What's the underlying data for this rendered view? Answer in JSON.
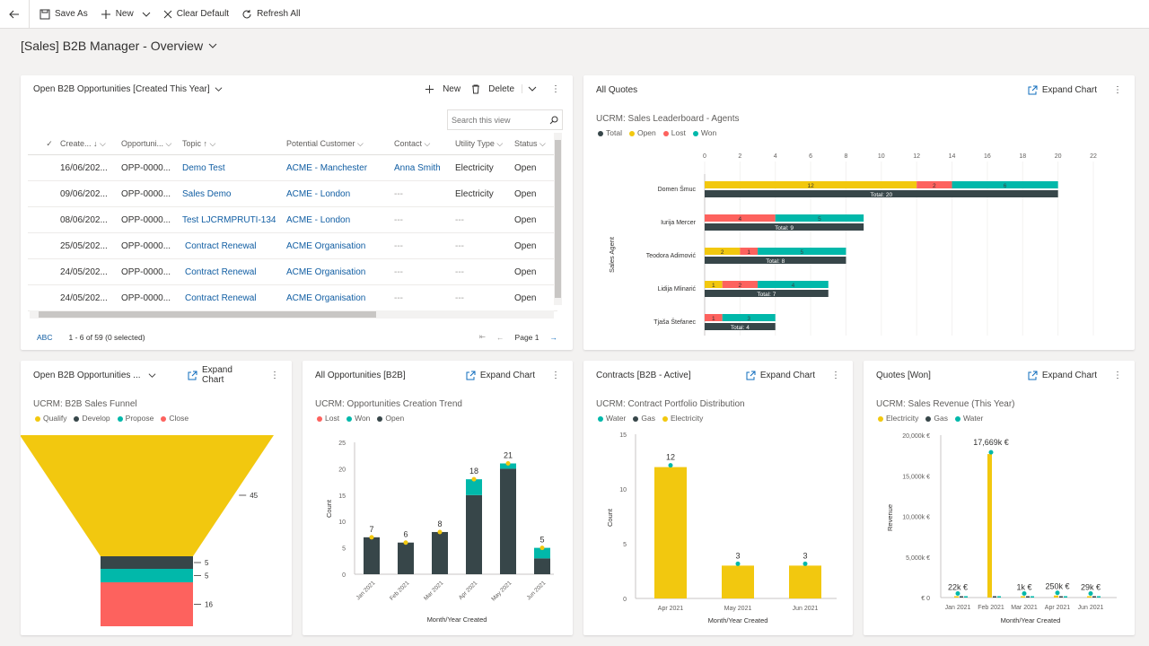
{
  "toolbar": {
    "save_as": "Save As",
    "new": "New",
    "clear_default": "Clear Default",
    "refresh_all": "Refresh All"
  },
  "page": {
    "title": "[Sales] B2B Manager - Overview"
  },
  "grid": {
    "title": "Open B2B Opportunities [Created This Year]",
    "new_label": "New",
    "delete_label": "Delete",
    "search_placeholder": "Search this view",
    "columns": [
      "Create...",
      "Opportuni...",
      "Topic",
      "Potential Customer",
      "Contact",
      "Utility Type",
      "Status"
    ],
    "rows": [
      {
        "created": "16/06/202...",
        "opp": "OPP-0000...",
        "topic": "Demo Test",
        "customer": "ACME - Manchester",
        "contact": "Anna Smith",
        "utility": "Electricity",
        "status": "Open"
      },
      {
        "created": "09/06/202...",
        "opp": "OPP-0000...",
        "topic": "Sales Demo",
        "customer": "ACME - London",
        "contact": "---",
        "utility": "Electricity",
        "status": "Open"
      },
      {
        "created": "08/06/202...",
        "opp": "OPP-0000...",
        "topic": "Test LJCRMPRUTI-134",
        "customer": "ACME - London",
        "contact": "---",
        "utility": "---",
        "status": "Open"
      },
      {
        "created": "25/05/202...",
        "opp": "OPP-0000...",
        "topic": "Contract Renewal",
        "customer": "ACME Organisation",
        "contact": "---",
        "utility": "---",
        "status": "Open"
      },
      {
        "created": "24/05/202...",
        "opp": "OPP-0000...",
        "topic": "Contract Renewal",
        "customer": "ACME Organisation",
        "contact": "---",
        "utility": "---",
        "status": "Open"
      },
      {
        "created": "24/05/202...",
        "opp": "OPP-0000...",
        "topic": "Contract Renewal",
        "customer": "ACME Organisation",
        "contact": "---",
        "utility": "---",
        "status": "Open"
      }
    ],
    "footer_abc": "ABC",
    "footer_count": "1 - 6 of 59 (0 selected)",
    "footer_page": "Page 1"
  },
  "quotes": {
    "title": "All Quotes",
    "expand": "Expand Chart"
  },
  "funnel_card": {
    "title": "Open B2B Opportunities ...",
    "expand": "Expand Chart"
  },
  "trend_card": {
    "title": "All Opportunities [B2B]",
    "expand": "Expand Chart"
  },
  "contracts_card": {
    "title": "Contracts [B2B - Active]",
    "expand": "Expand Chart"
  },
  "won_card": {
    "title": "Quotes [Won]",
    "expand": "Expand Chart"
  },
  "colors": {
    "total": "#374649",
    "open": "#f2c80f",
    "lost": "#fd625e",
    "won": "#01b8aa",
    "accent": "#0f6cbd"
  },
  "chart_data": [
    {
      "type": "bar",
      "title": "UCRM: Sales Leaderboard - Agents",
      "ylabel": "Sales Agent",
      "legend": [
        "Total",
        "Open",
        "Lost",
        "Won"
      ],
      "x_ticks": [
        0,
        2,
        4,
        6,
        8,
        10,
        12,
        14,
        16,
        18,
        20,
        22
      ],
      "categories": [
        "Domen Šmuc",
        "Iurija Mercer",
        "Teodora Adimović",
        "Lidija Mlinarić",
        "Tjaša Štefanec"
      ],
      "series": [
        {
          "name": "Open",
          "values": [
            12,
            0,
            2,
            1,
            0
          ]
        },
        {
          "name": "Lost",
          "values": [
            2,
            4,
            1,
            2,
            1
          ]
        },
        {
          "name": "Won",
          "values": [
            6,
            5,
            5,
            4,
            3
          ]
        },
        {
          "name": "Total",
          "values": [
            20,
            9,
            8,
            7,
            4
          ]
        }
      ],
      "total_labels": [
        "Total: 20",
        "Total: 9",
        "Total: 8",
        "Total: 7",
        "Total: 4"
      ]
    },
    {
      "type": "funnel",
      "title": "UCRM: B2B Sales Funnel",
      "legend": [
        "Qualify",
        "Develop",
        "Propose",
        "Close"
      ],
      "values": [
        45,
        5,
        5,
        16
      ]
    },
    {
      "type": "bar",
      "title": "UCRM: Opportunities Creation Trend",
      "legend": [
        "Lost",
        "Won",
        "Open"
      ],
      "xlabel": "Month/Year Created",
      "ylabel": "Count",
      "y_ticks": [
        0,
        5,
        10,
        15,
        20,
        25
      ],
      "categories": [
        "Jan 2021",
        "Feb 2021",
        "Mar 2021",
        "Apr 2021",
        "May 2021",
        "Jun 2021"
      ],
      "series": [
        {
          "name": "Open",
          "values": [
            7,
            6,
            8,
            15,
            20,
            3
          ]
        },
        {
          "name": "Won",
          "values": [
            0,
            0,
            0,
            3,
            1,
            2
          ]
        }
      ],
      "totals": [
        7,
        6,
        8,
        18,
        21,
        5
      ]
    },
    {
      "type": "bar",
      "title": "UCRM: Contract Portfolio Distribution",
      "legend": [
        "Water",
        "Gas",
        "Electricity"
      ],
      "xlabel": "Month/Year Created",
      "ylabel": "Count",
      "y_ticks": [
        0,
        5,
        10,
        15
      ],
      "categories": [
        "Apr 2021",
        "May 2021",
        "Jun 2021"
      ],
      "series": [
        {
          "name": "Electricity",
          "values": [
            12,
            3,
            3
          ]
        }
      ],
      "totals": [
        12,
        3,
        3
      ]
    },
    {
      "type": "bar",
      "title": "UCRM: Sales Revenue (This Year)",
      "legend": [
        "Electricity",
        "Gas",
        "Water"
      ],
      "xlabel": "Month/Year Created",
      "ylabel": "Revenue",
      "y_ticks": [
        "€ 0",
        "5,000k €",
        "10,000k €",
        "15,000k €",
        "20,000k €"
      ],
      "categories": [
        "Jan 2021",
        "Feb 2021",
        "Mar 2021",
        "Apr 2021",
        "Jun 2021"
      ],
      "series": [
        {
          "name": "Electricity",
          "values": [
            22,
            17669,
            1,
            250,
            29
          ]
        }
      ],
      "labels": [
        "22k €",
        "17,669k €",
        "1k €",
        "250k €",
        "29k €"
      ]
    }
  ]
}
